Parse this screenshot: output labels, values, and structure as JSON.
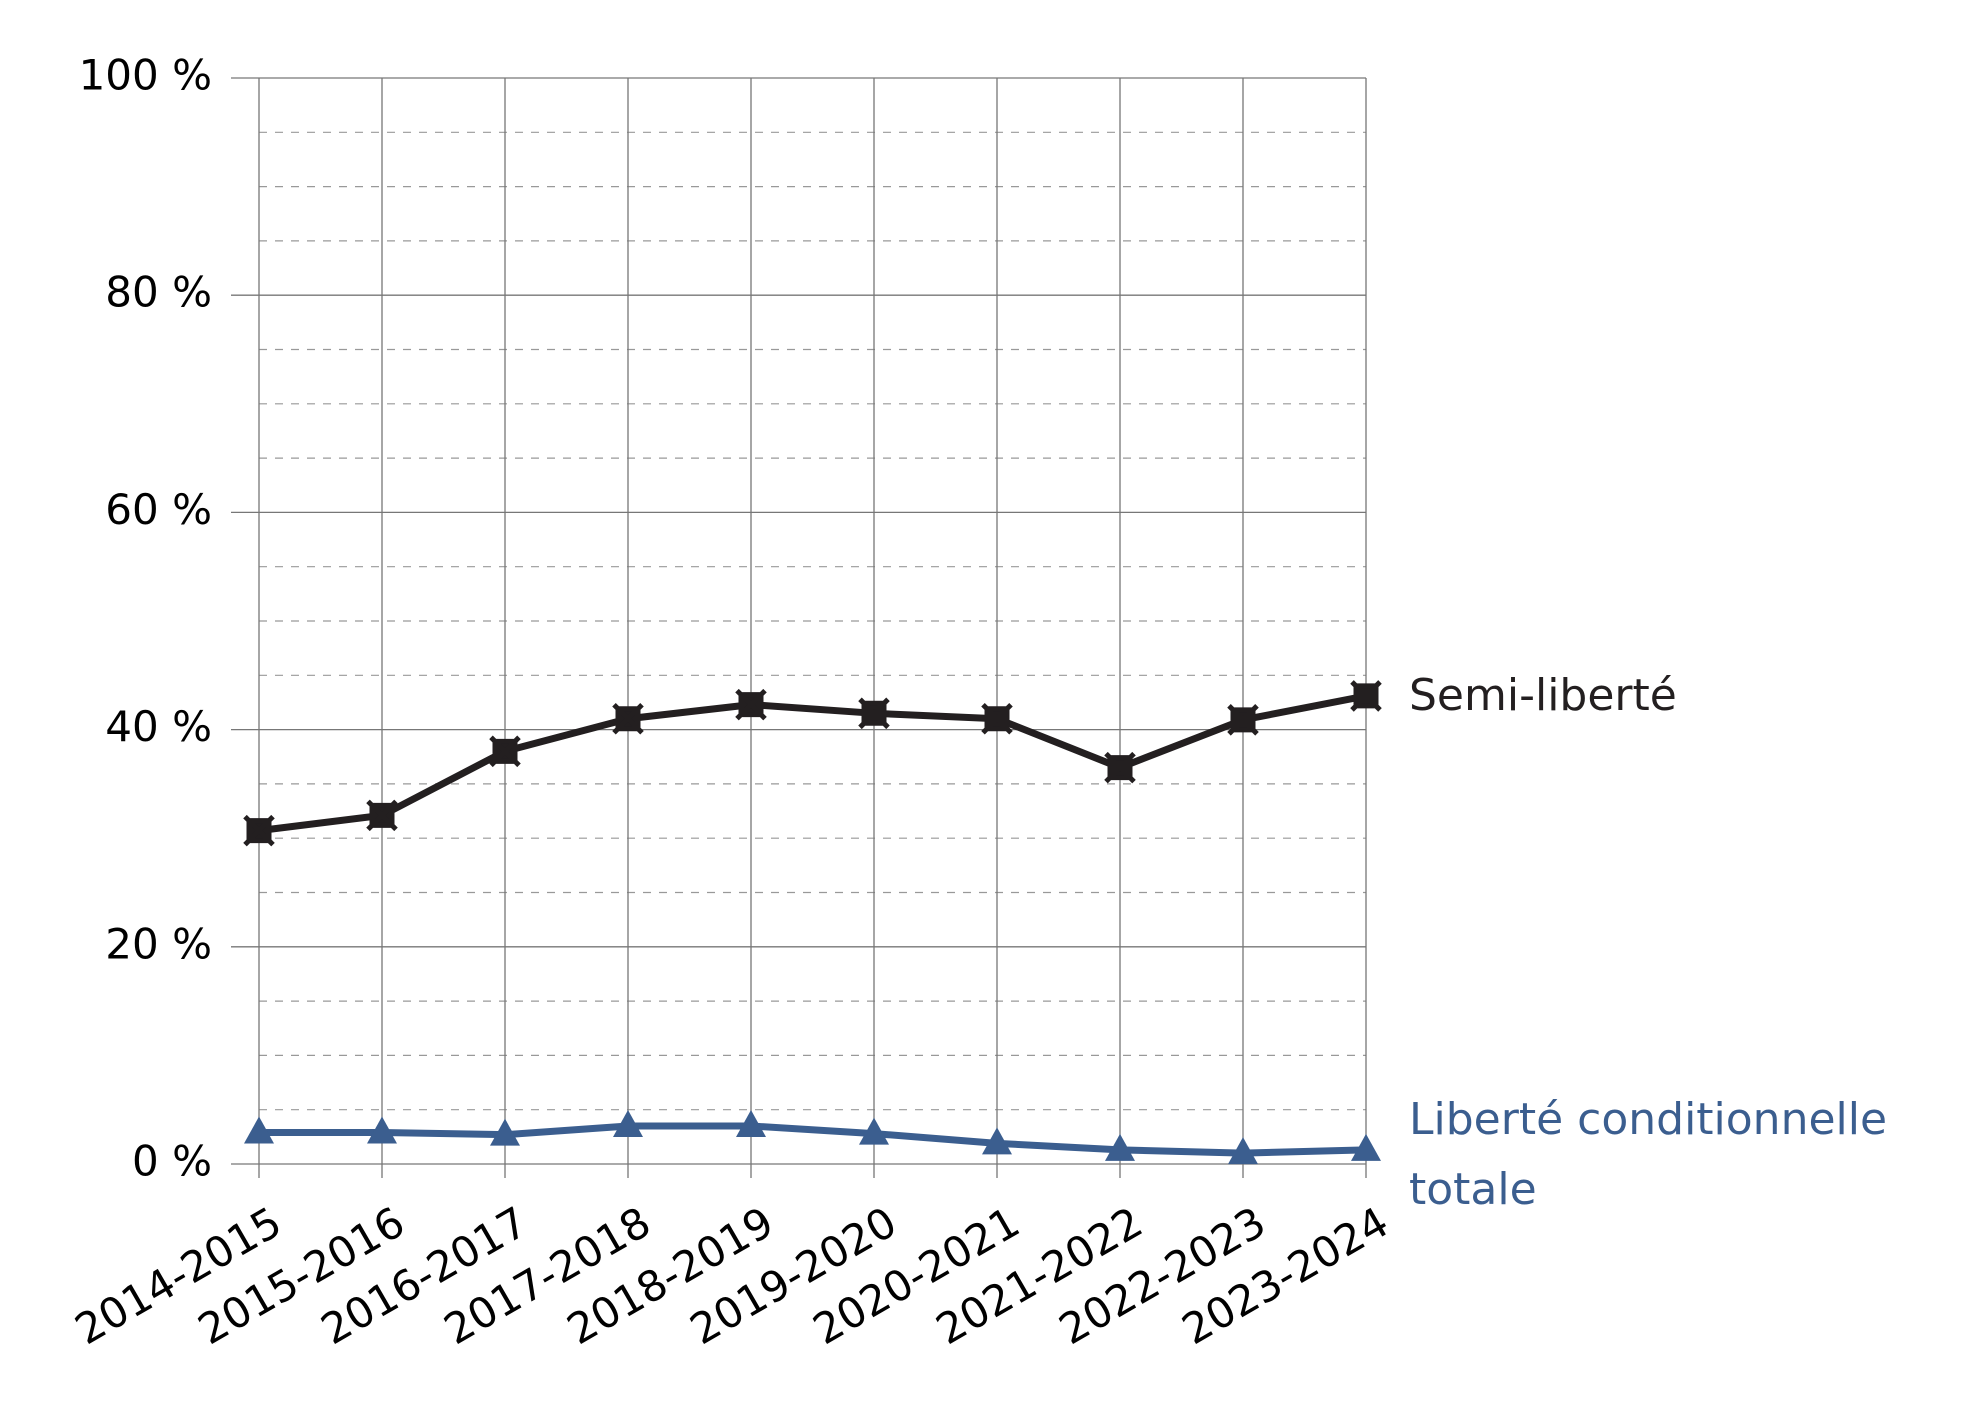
{
  "chart_data": {
    "type": "line",
    "categories": [
      "2014-2015",
      "2015-2016",
      "2016-2017",
      "2017-2018",
      "2018-2019",
      "2019-2020",
      "2020-2021",
      "2021-2022",
      "2022-2023",
      "2023-2024"
    ],
    "series": [
      {
        "name": "Semi-liberté",
        "color": "#231f20",
        "marker": "star",
        "values": [
          30.7,
          32.1,
          38.0,
          41.0,
          42.3,
          41.5,
          41.0,
          36.5,
          40.9,
          43.1
        ]
      },
      {
        "name": "Liberté conditionnelle totale",
        "color": "#3b5e8f",
        "marker": "triangle",
        "values": [
          2.9,
          2.9,
          2.7,
          3.5,
          3.5,
          2.8,
          1.9,
          1.3,
          1.0,
          1.3
        ]
      }
    ],
    "ylim": [
      0,
      100
    ],
    "yticks": [
      {
        "value": 0,
        "label": "0 %"
      },
      {
        "value": 20,
        "label": "20 %"
      },
      {
        "value": 40,
        "label": "40 %"
      },
      {
        "value": 60,
        "label": "60 %"
      },
      {
        "value": 80,
        "label": "80 %"
      },
      {
        "value": 100,
        "label": "100 %"
      }
    ],
    "grid": true
  }
}
